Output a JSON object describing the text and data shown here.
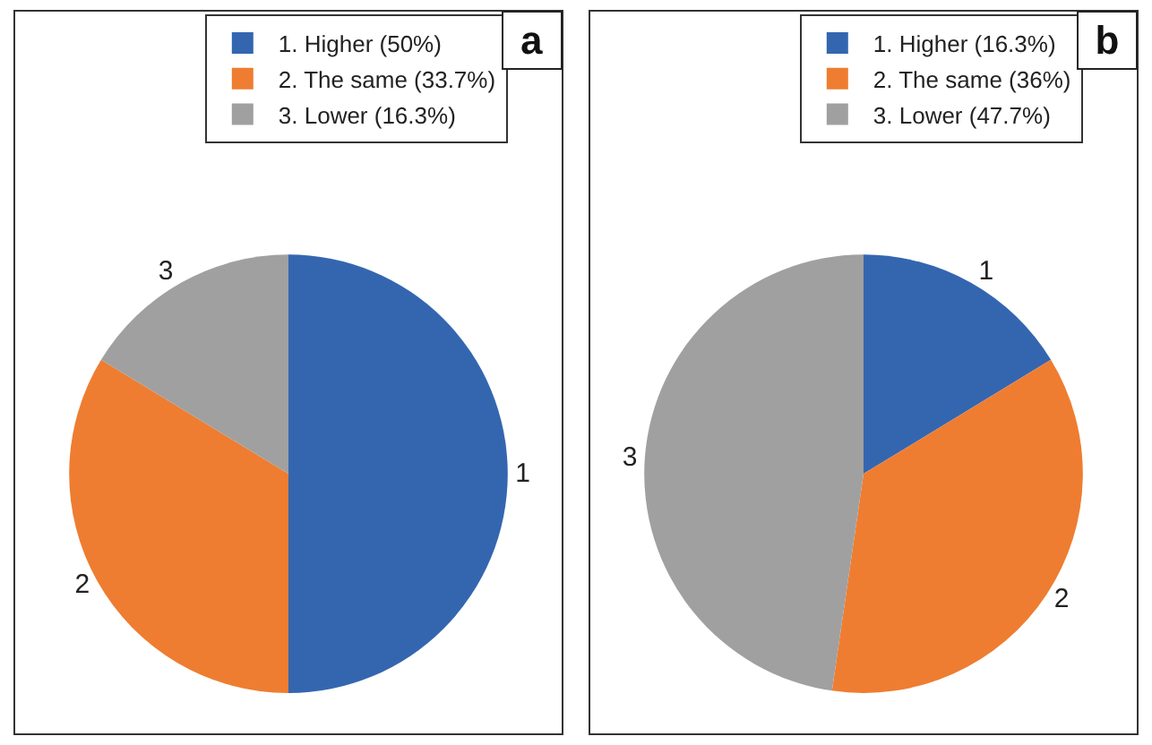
{
  "chart_data": [
    {
      "type": "pie",
      "categories": [
        "1. Higher (50%)",
        "2. The same (33.7%)",
        "3. Lower (16.3%)"
      ],
      "values": [
        50,
        33.7,
        16.3
      ],
      "colors": [
        "#3466b0",
        "#ee7d31",
        "#a0a0a0"
      ],
      "legend": "top right",
      "annotations": [
        "a",
        {
          "text": "1",
          "x": "1. Higher (50%)"
        },
        {
          "text": "2",
          "x": "2. The same (33.7%)"
        },
        {
          "text": "3",
          "x": "3. Lower (16.3%)"
        }
      ]
    },
    {
      "type": "pie",
      "categories": [
        "1. Higher (16.3%)",
        "2. The same (36%)",
        "3. Lower (47.7%)"
      ],
      "values": [
        16.3,
        36,
        47.7
      ],
      "colors": [
        "#3466b0",
        "#ee7d31",
        "#a0a0a0"
      ],
      "legend": "top right",
      "annotations": [
        "b",
        {
          "text": "1",
          "x": "1. Higher (16.3%)"
        },
        {
          "text": "2",
          "x": "2. The same (36%)"
        },
        {
          "text": "3",
          "x": "3. Lower (47.7%)"
        }
      ]
    }
  ]
}
